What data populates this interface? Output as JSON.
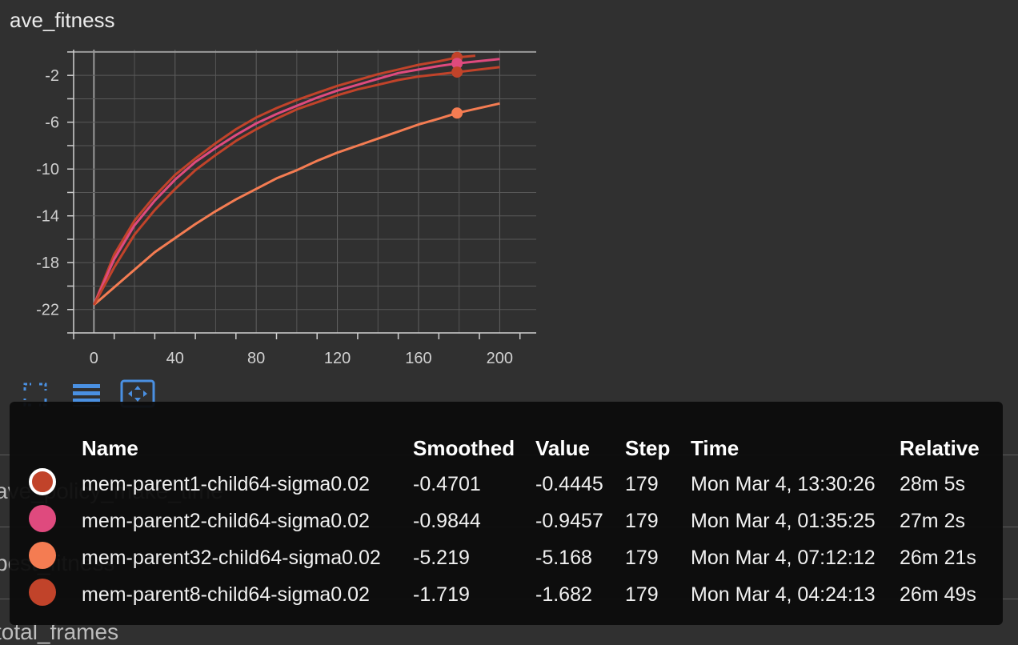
{
  "chart_data": {
    "type": "line",
    "title": "ave_fitness",
    "xlabel": "",
    "ylabel": "",
    "xlim": [
      -10,
      218
    ],
    "ylim": [
      -24,
      0.2
    ],
    "x_ticks": [
      0,
      40,
      80,
      120,
      160,
      200
    ],
    "y_ticks": [
      -2,
      -6,
      -10,
      -14,
      -18,
      -22
    ],
    "grid": true,
    "series": [
      {
        "name": "mem-parent1-child64-sigma0.02",
        "color": "#c1432a",
        "x": [
          0,
          10,
          20,
          30,
          40,
          50,
          60,
          70,
          80,
          90,
          100,
          110,
          120,
          130,
          140,
          150,
          160,
          170,
          179,
          188
        ],
        "y": [
          -21.6,
          -17.3,
          -14.4,
          -12.3,
          -10.5,
          -9.1,
          -7.8,
          -6.6,
          -5.6,
          -4.8,
          -4.1,
          -3.5,
          -2.9,
          -2.4,
          -1.9,
          -1.5,
          -1.1,
          -0.8,
          -0.47,
          -0.32
        ]
      },
      {
        "name": "mem-parent2-child64-sigma0.02",
        "color": "#df4a7e",
        "x": [
          0,
          10,
          20,
          30,
          40,
          50,
          60,
          70,
          80,
          90,
          100,
          110,
          120,
          130,
          140,
          150,
          160,
          170,
          179,
          200
        ],
        "y": [
          -21.6,
          -17.7,
          -14.8,
          -12.7,
          -10.9,
          -9.4,
          -8.2,
          -7.1,
          -6.1,
          -5.3,
          -4.6,
          -3.9,
          -3.3,
          -2.8,
          -2.3,
          -1.8,
          -1.5,
          -1.2,
          -0.98,
          -0.6
        ]
      },
      {
        "name": "mem-parent32-child64-sigma0.02",
        "color": "#f47c52",
        "x": [
          0,
          10,
          20,
          30,
          40,
          50,
          60,
          70,
          80,
          90,
          100,
          110,
          120,
          130,
          140,
          150,
          160,
          170,
          179,
          200
        ],
        "y": [
          -21.6,
          -20.1,
          -18.6,
          -17.1,
          -15.9,
          -14.7,
          -13.6,
          -12.6,
          -11.7,
          -10.8,
          -10.1,
          -9.3,
          -8.6,
          -8.0,
          -7.4,
          -6.8,
          -6.2,
          -5.7,
          -5.22,
          -4.4
        ]
      },
      {
        "name": "mem-parent8-child64-sigma0.02",
        "color": "#c1432a",
        "x": [
          0,
          10,
          20,
          30,
          40,
          50,
          60,
          70,
          80,
          90,
          100,
          110,
          120,
          130,
          140,
          150,
          160,
          170,
          179,
          200
        ],
        "y": [
          -21.6,
          -18.4,
          -15.6,
          -13.5,
          -11.7,
          -10.1,
          -8.8,
          -7.6,
          -6.6,
          -5.7,
          -4.9,
          -4.3,
          -3.7,
          -3.2,
          -2.8,
          -2.4,
          -2.1,
          -1.9,
          -1.72,
          -1.3
        ]
      }
    ],
    "highlight_x": 179
  },
  "toolbar": {
    "icons": [
      "fullscreen-icon",
      "data-table-icon",
      "fit-domain-icon"
    ]
  },
  "background_labels": [
    "ave_policy_make_time",
    "best_fitness",
    "total_frames"
  ],
  "tooltip": {
    "headers": [
      "Name",
      "Smoothed",
      "Value",
      "Step",
      "Time",
      "Relative"
    ],
    "rows": [
      {
        "color": "#c1432a",
        "selected": true,
        "name": "mem-parent1-child64-sigma0.02",
        "smoothed": "-0.4701",
        "value": "-0.4445",
        "step": "179",
        "time": "Mon Mar 4, 13:30:26",
        "relative": "28m 5s"
      },
      {
        "color": "#df4a7e",
        "selected": false,
        "name": "mem-parent2-child64-sigma0.02",
        "smoothed": "-0.9844",
        "value": "-0.9457",
        "step": "179",
        "time": "Mon Mar 4, 01:35:25",
        "relative": "27m 2s"
      },
      {
        "color": "#f47c52",
        "selected": false,
        "name": "mem-parent32-child64-sigma0.02",
        "smoothed": "-5.219",
        "value": "-5.168",
        "step": "179",
        "time": "Mon Mar 4, 07:12:12",
        "relative": "26m 21s"
      },
      {
        "color": "#c1432a",
        "selected": false,
        "name": "mem-parent8-child64-sigma0.02",
        "smoothed": "-1.719",
        "value": "-1.682",
        "step": "179",
        "time": "Mon Mar 4, 04:24:13",
        "relative": "26m 49s"
      }
    ]
  }
}
